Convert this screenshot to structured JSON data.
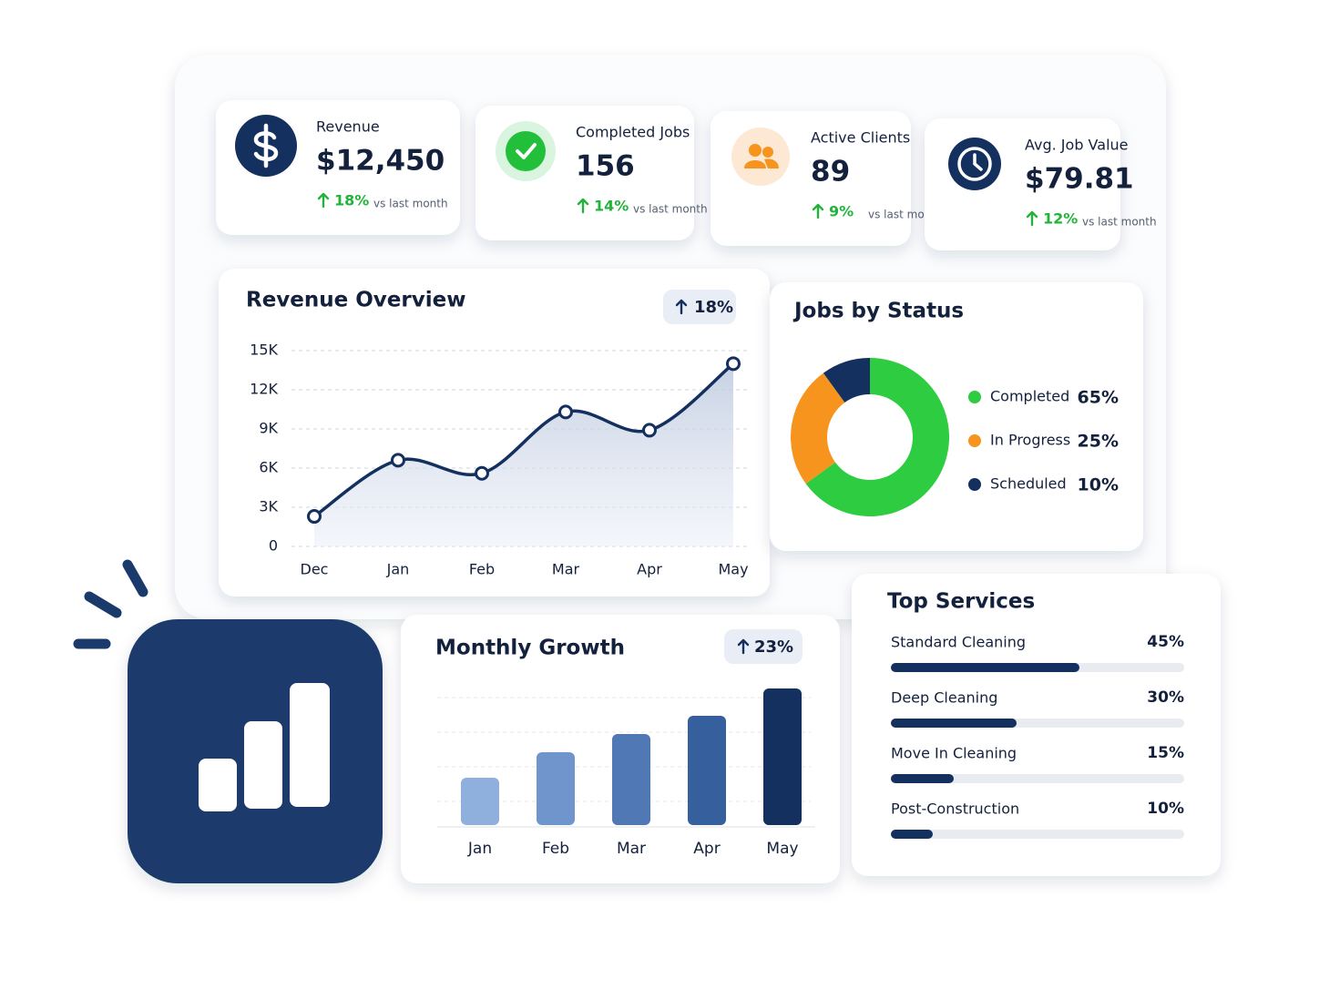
{
  "kpis": [
    {
      "label": "Revenue",
      "value": "$12,450",
      "change": "18%",
      "note": "vs last month"
    },
    {
      "label": "Completed Jobs",
      "value": "156",
      "change": "14%",
      "note": "vs last month"
    },
    {
      "label": "Active Clients",
      "value": "89",
      "change": "9%",
      "note": "vs last month"
    },
    {
      "label": "Avg. Job Value",
      "value": "$79.81",
      "change": "12%",
      "note": "vs last month"
    }
  ],
  "chart_data": [
    {
      "type": "line",
      "title": "Revenue Overview",
      "badge": "18%",
      "categories": [
        "Dec",
        "Jan",
        "Feb",
        "Mar",
        "Apr",
        "May"
      ],
      "values": [
        2300,
        6600,
        5600,
        10300,
        8900,
        14000
      ],
      "ylim": [
        0,
        15000
      ],
      "yticks": [
        0,
        {
          "value": 3000,
          "label": "3K"
        },
        {
          "value": 6000,
          "label": "6K"
        },
        {
          "value": 9000,
          "label": "9K"
        },
        {
          "value": 12000,
          "label": "12K"
        },
        {
          "value": 15000,
          "label": "15K"
        }
      ],
      "grid": true,
      "color": "#14305f"
    },
    {
      "type": "donut",
      "title": "Jobs by Status",
      "categories": [
        "Completed",
        "In Progress",
        "Scheduled"
      ],
      "values": [
        65,
        25,
        10
      ],
      "value_labels": [
        "65%",
        "25%",
        "10%"
      ],
      "colors": [
        "#2ecc40",
        "#f7941d",
        "#14305f"
      ]
    },
    {
      "type": "bar",
      "title": "Monthly Growth",
      "badge": "23%",
      "categories": [
        "Jan",
        "Feb",
        "Mar",
        "Apr",
        "May"
      ],
      "values": [
        52,
        80,
        100,
        120,
        150
      ],
      "ylim": [
        0,
        160
      ],
      "colors": [
        "#8fb0dc",
        "#6f95cc",
        "#4f78b4",
        "#365f9e",
        "#14305f"
      ]
    },
    {
      "type": "hbar",
      "title": "Top Services",
      "categories": [
        "Standard Cleaning",
        "Deep Cleaning",
        "Move In Cleaning",
        "Post-Construction"
      ],
      "values": [
        45,
        30,
        15,
        10
      ],
      "value_labels": [
        "45%",
        "30%",
        "15%",
        "10%"
      ],
      "xlim": [
        0,
        70
      ],
      "color": "#14305f"
    }
  ]
}
